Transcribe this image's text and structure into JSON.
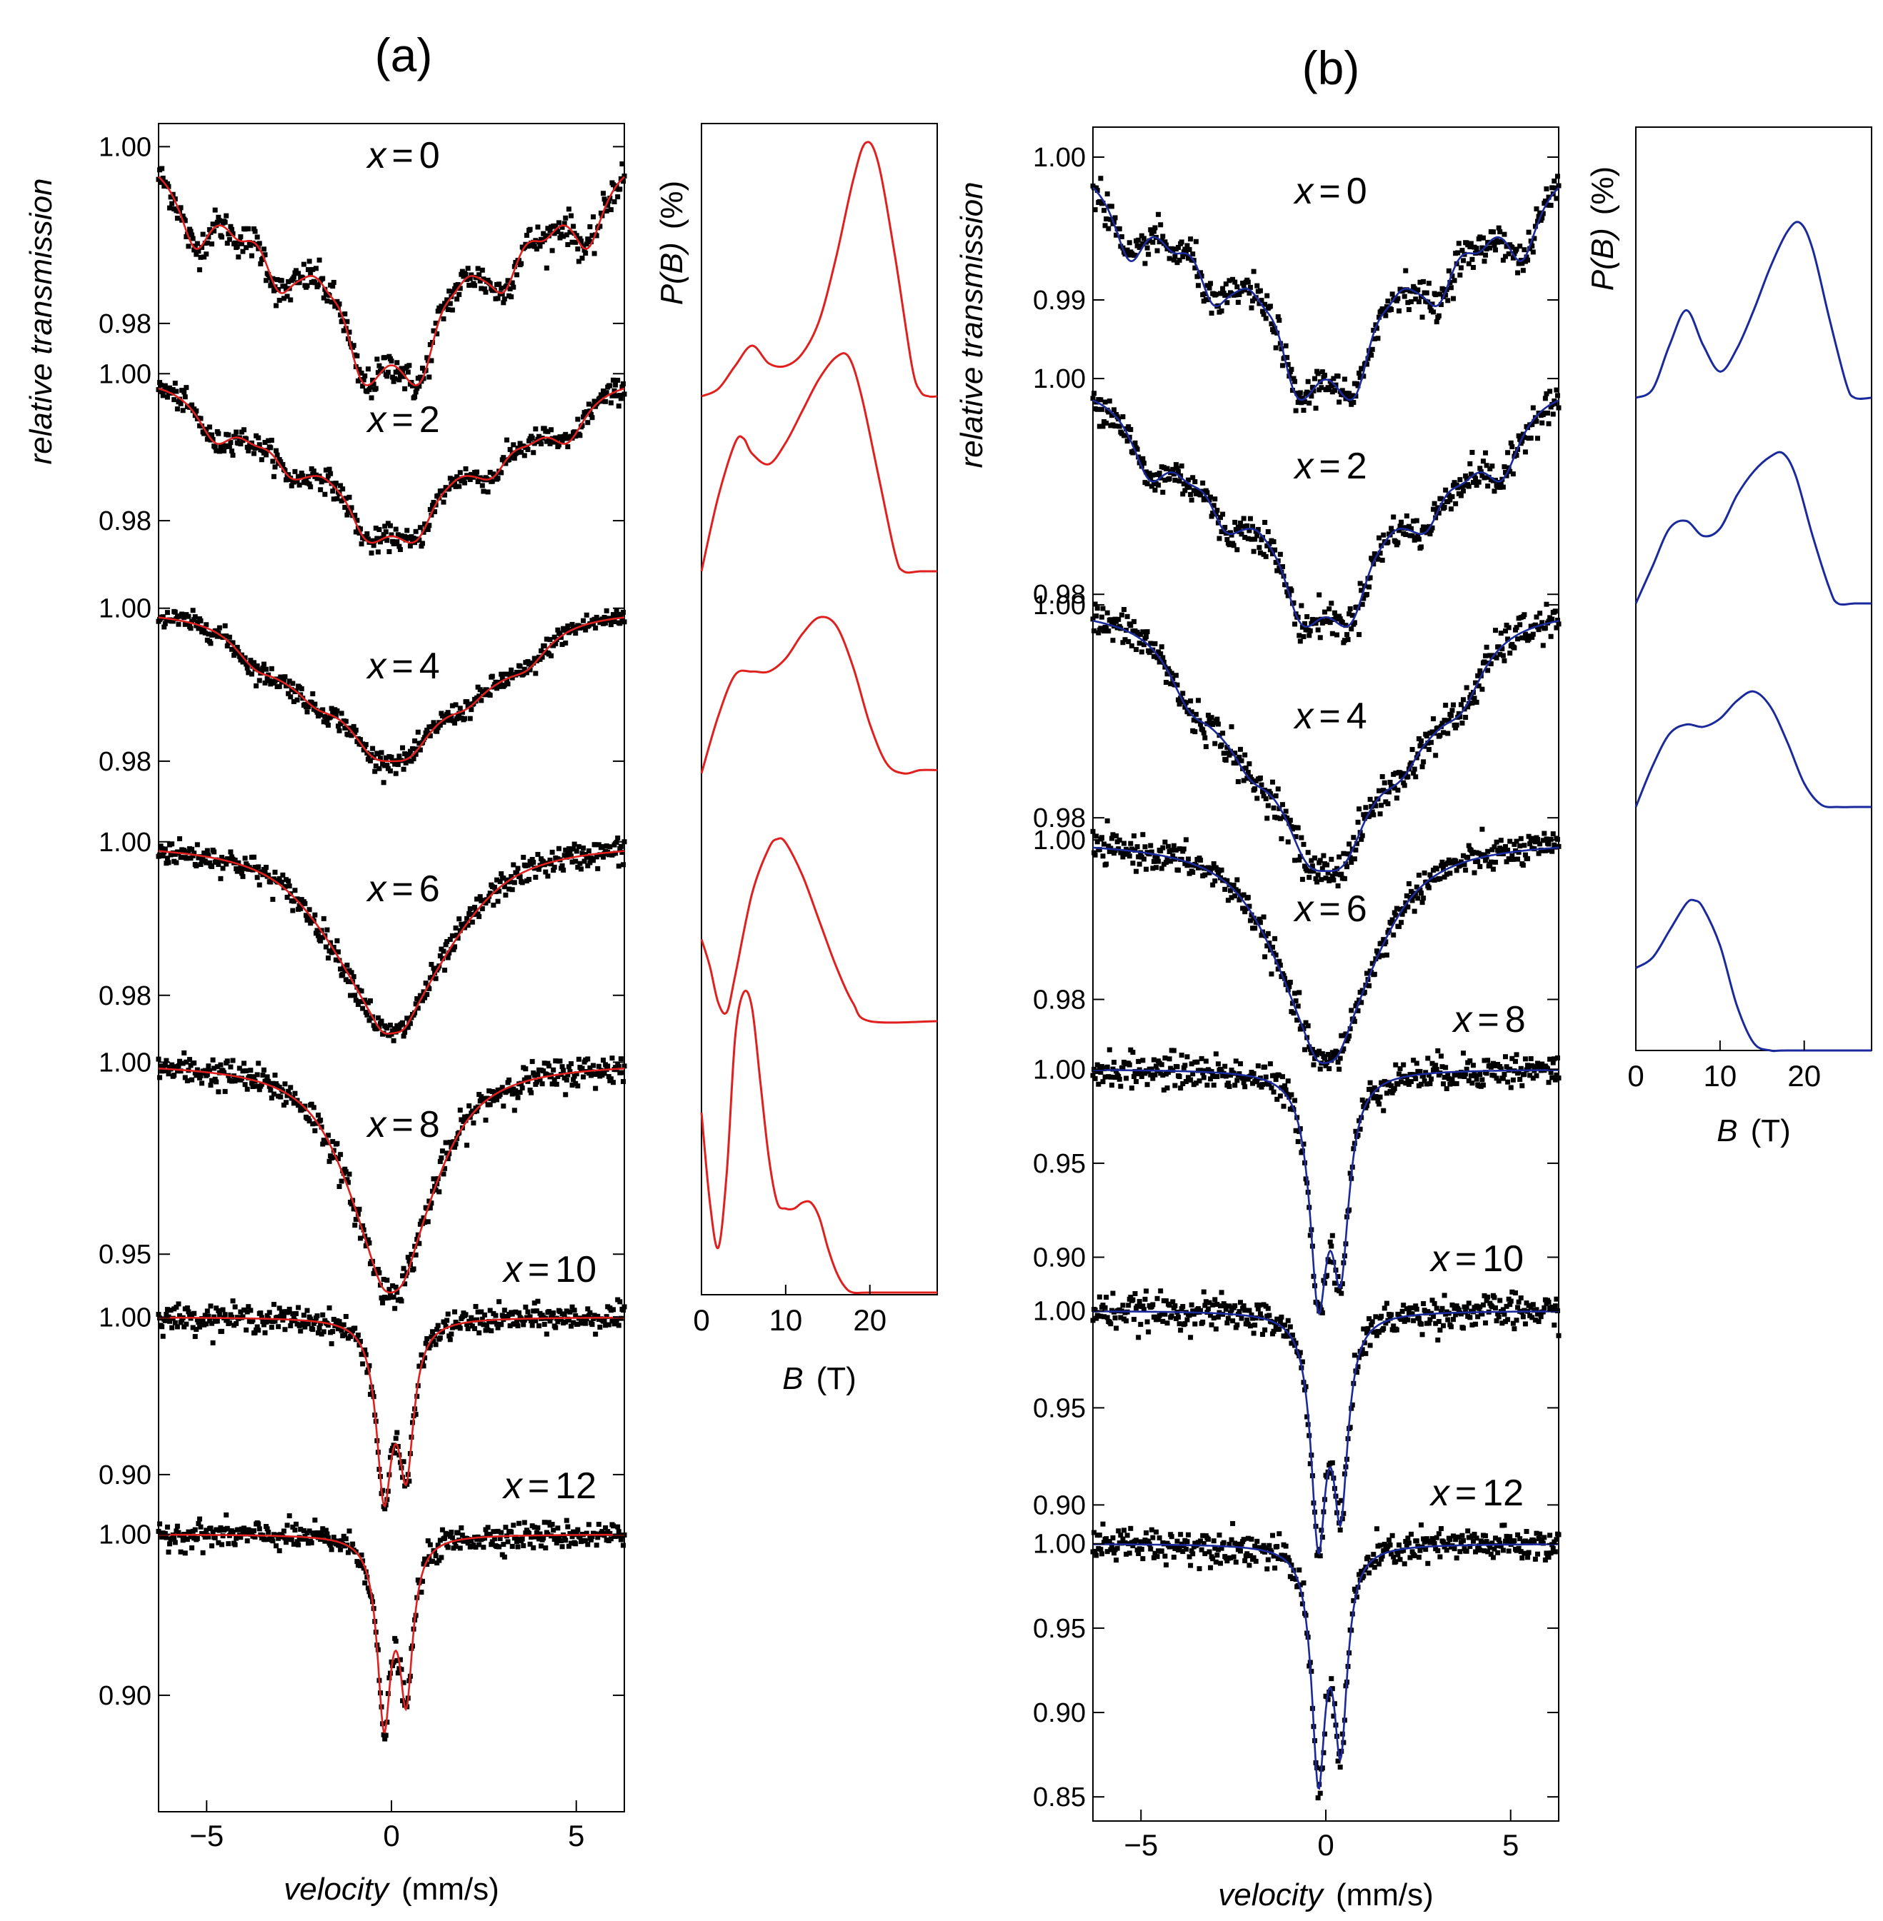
{
  "figure": {
    "panels": [
      "(a)",
      "(b)"
    ]
  },
  "chart_data": [
    {
      "id": "a-spectra",
      "type": "line",
      "panel": "(a)",
      "description_kind": "stacked transmission spectra with fit",
      "xlabel_italic": "velocity",
      "xlabel_unit": "(mm/s)",
      "ylabel": "relative transmission",
      "xlim": [
        -6.3,
        6.3
      ],
      "x_ticks": [
        "−5",
        "0",
        "5"
      ],
      "x_tick_values": [
        -5,
        0,
        5
      ],
      "fit_color": "#e0201e",
      "data_color": "#000000",
      "series": [
        {
          "label": "x = 0",
          "name": "x",
          "value": "0",
          "type": "six",
          "B": 19.5,
          "width": 0.55,
          "depth": 0.027,
          "y_ticks": [
            "1.00",
            "0.98"
          ],
          "y_tick_values": [
            1.0,
            0.98
          ],
          "ylim": [
            0.977,
            1.001
          ]
        },
        {
          "label": "x = 2",
          "name": "x",
          "value": "2",
          "type": "six",
          "B": 17.5,
          "width": 0.62,
          "depth": 0.023,
          "y_ticks": [
            "1.00",
            "0.98"
          ],
          "y_tick_values": [
            1.0,
            0.98
          ],
          "ylim": [
            0.977,
            1.001
          ]
        },
        {
          "label": "x = 4",
          "name": "x",
          "value": "4",
          "type": "six",
          "B": 13.5,
          "width": 0.75,
          "depth": 0.02,
          "y_ticks": [
            "1.00",
            "0.98"
          ],
          "y_tick_values": [
            1.0,
            0.98
          ],
          "ylim": [
            0.977,
            1.001
          ]
        },
        {
          "label": "x = 6",
          "name": "x",
          "value": "6",
          "type": "broad",
          "B": 8.0,
          "width": 1.2,
          "depth": 0.025,
          "y_ticks": [
            "1.00",
            "0.98"
          ],
          "y_tick_values": [
            1.0,
            0.98
          ],
          "ylim": [
            0.977,
            1.001
          ]
        },
        {
          "label": "x = 8",
          "name": "x",
          "value": "8",
          "type": "broad",
          "B": 5.0,
          "width": 0.95,
          "depth": 0.06,
          "y_ticks": [
            "1.00",
            "0.95"
          ],
          "y_tick_values": [
            1.0,
            0.95
          ],
          "ylim": [
            0.94,
            1.001
          ]
        },
        {
          "label": "x = 10",
          "name": "x",
          "value": "10",
          "type": "doublet",
          "B": 0,
          "width": 0.25,
          "depth": 0.12,
          "y_ticks": [
            "1.00",
            "0.90"
          ],
          "y_tick_values": [
            1.0,
            0.9
          ],
          "ylim": [
            0.875,
            1.002
          ]
        },
        {
          "label": "x = 12",
          "name": "x",
          "value": "12",
          "type": "doublet",
          "B": 0,
          "width": 0.22,
          "depth": 0.123,
          "y_ticks": [
            "1.00",
            "0.90"
          ],
          "y_tick_values": [
            1.0,
            0.9
          ],
          "ylim": [
            0.876,
            1.002
          ]
        }
      ]
    },
    {
      "id": "a-pb",
      "type": "line",
      "panel": "(a)",
      "description_kind": "field distributions",
      "ylabel_italic": "P(B)",
      "ylabel_unit": "(%)",
      "xlabel_italic": "B",
      "xlabel_unit": "(T)",
      "xlim": [
        0,
        28
      ],
      "x_ticks": [
        "0",
        "10",
        "20"
      ],
      "x_tick_values": [
        0,
        10,
        20
      ],
      "color": "#e0201e",
      "curves": [
        {
          "x": [
            0,
            2,
            4,
            6,
            8,
            10,
            12,
            14,
            16,
            18,
            19.5,
            21,
            23,
            25,
            26,
            27,
            28
          ],
          "y": [
            0,
            0.03,
            0.12,
            0.2,
            0.13,
            0.12,
            0.17,
            0.3,
            0.55,
            0.85,
            1.0,
            0.92,
            0.55,
            0.12,
            0.02,
            0,
            0
          ]
        },
        {
          "x": [
            0,
            2,
            4,
            5,
            6,
            8,
            10,
            12,
            14,
            16,
            17.5,
            19,
            21,
            23,
            24,
            26,
            28
          ],
          "y": [
            0,
            0.35,
            0.6,
            0.62,
            0.55,
            0.5,
            0.6,
            0.75,
            0.9,
            1.0,
            1.0,
            0.82,
            0.45,
            0.08,
            0,
            0,
            0
          ]
        },
        {
          "x": [
            0,
            2,
            4,
            6,
            8,
            10,
            12,
            14,
            16,
            18,
            20,
            22,
            24,
            26,
            28
          ],
          "y": [
            0,
            0.35,
            0.6,
            0.62,
            0.62,
            0.7,
            0.85,
            0.95,
            0.9,
            0.65,
            0.3,
            0.06,
            0.0,
            0.02,
            0.02
          ]
        },
        {
          "x": [
            0,
            1,
            2,
            3,
            4,
            6,
            8,
            9,
            10,
            12,
            14,
            16,
            18,
            20,
            28
          ],
          "y": [
            0.45,
            0.3,
            0.1,
            0.05,
            0.25,
            0.7,
            0.95,
            1.0,
            0.98,
            0.8,
            0.55,
            0.3,
            0.1,
            0,
            0
          ]
        },
        {
          "x": [
            0,
            1,
            2,
            3,
            4,
            5,
            6,
            7,
            8,
            9,
            10,
            11,
            12,
            13,
            14,
            15,
            16,
            17,
            18,
            20,
            28
          ],
          "y": [
            0.6,
            0.3,
            0.15,
            0.4,
            0.85,
            1.0,
            0.95,
            0.7,
            0.45,
            0.3,
            0.28,
            0.28,
            0.3,
            0.3,
            0.25,
            0.15,
            0.07,
            0.02,
            0.0,
            0.0,
            0.0
          ]
        }
      ]
    },
    {
      "id": "b-spectra",
      "type": "line",
      "panel": "(b)",
      "description_kind": "stacked transmission spectra with fit",
      "xlabel_italic": "velocity",
      "xlabel_unit": "(mm/s)",
      "ylabel": "relative transmission",
      "xlim": [
        -6.3,
        6.3
      ],
      "x_ticks": [
        "−5",
        "0",
        "5"
      ],
      "x_tick_values": [
        -5,
        0,
        5
      ],
      "fit_color": "#1a2a9c",
      "data_color": "#000000",
      "series": [
        {
          "label": "x = 0",
          "name": "x",
          "value": "0",
          "type": "six",
          "B": 19.5,
          "width": 0.55,
          "depth": 0.017,
          "y_ticks": [
            "1.00",
            "0.99"
          ],
          "y_tick_values": [
            1.0,
            0.99
          ],
          "ylim": [
            0.9845,
            1.001
          ]
        },
        {
          "label": "x = 2",
          "name": "x",
          "value": "2",
          "type": "six",
          "B": 17.5,
          "width": 0.62,
          "depth": 0.023,
          "y_ticks": [
            "1.00",
            "0.98"
          ],
          "y_tick_values": [
            1.0,
            0.98
          ],
          "ylim": [
            0.9775,
            1.001
          ]
        },
        {
          "label": "x = 4",
          "name": "x",
          "value": "4",
          "type": "six",
          "B": 13.5,
          "width": 0.75,
          "depth": 0.025,
          "y_ticks": [
            "1.00",
            "0.98"
          ],
          "y_tick_values": [
            1.0,
            0.98
          ],
          "ylim": [
            0.978,
            1.001
          ]
        },
        {
          "label": "x = 6",
          "name": "x",
          "value": "6",
          "type": "broad",
          "B": 6.0,
          "width": 1.05,
          "depth": 0.028,
          "y_ticks": [
            "1.00",
            "0.98"
          ],
          "y_tick_values": [
            1.0,
            0.98
          ],
          "ylim": [
            0.971,
            1.001
          ]
        },
        {
          "label": "x = 8",
          "name": "x",
          "value": "8",
          "type": "doublet",
          "B": 0,
          "width": 0.28,
          "depth": 0.13,
          "y_ticks": [
            "1.00",
            "0.95",
            "0.90"
          ],
          "y_tick_values": [
            1.0,
            0.95,
            0.9
          ],
          "ylim": [
            0.885,
            1.002
          ]
        },
        {
          "label": "x = 10",
          "name": "x",
          "value": "10",
          "type": "doublet",
          "B": 0,
          "width": 0.24,
          "depth": 0.125,
          "y_ticks": [
            "1.00",
            "0.95",
            "0.90"
          ],
          "y_tick_values": [
            1.0,
            0.95,
            0.9
          ],
          "ylim": [
            0.888,
            1.002
          ]
        },
        {
          "label": "x = 12",
          "name": "x",
          "value": "12",
          "type": "doublet",
          "B": 0,
          "width": 0.22,
          "depth": 0.145,
          "y_ticks": [
            "1.00",
            "0.95",
            "0.90",
            "0.85"
          ],
          "y_tick_values": [
            1.0,
            0.95,
            0.9,
            0.85
          ],
          "ylim": [
            0.845,
            1.002
          ]
        }
      ]
    },
    {
      "id": "b-pb",
      "type": "line",
      "panel": "(b)",
      "description_kind": "field distributions",
      "ylabel_italic": "P(B)",
      "ylabel_unit": "(%)",
      "xlabel_italic": "B",
      "xlabel_unit": "(T)",
      "xlim": [
        0,
        28
      ],
      "x_ticks": [
        "0",
        "10",
        "20"
      ],
      "x_tick_values": [
        0,
        10,
        20
      ],
      "color": "#1a2a9c",
      "curves": [
        {
          "x": [
            0,
            2,
            4,
            6,
            8,
            10,
            12,
            14,
            16,
            18,
            19.5,
            21,
            23,
            25,
            26,
            28
          ],
          "y": [
            0,
            0.05,
            0.3,
            0.5,
            0.3,
            0.15,
            0.28,
            0.5,
            0.75,
            0.95,
            1.0,
            0.85,
            0.45,
            0.08,
            0.0,
            0.0
          ]
        },
        {
          "x": [
            0,
            2,
            4,
            6,
            8,
            10,
            12,
            14,
            16,
            17.5,
            19,
            21,
            23,
            24,
            26,
            28
          ],
          "y": [
            0,
            0.25,
            0.5,
            0.55,
            0.45,
            0.5,
            0.72,
            0.88,
            0.98,
            1.0,
            0.85,
            0.45,
            0.1,
            0.0,
            0.0,
            0.0
          ]
        },
        {
          "x": [
            0,
            2,
            4,
            6,
            8,
            10,
            12,
            14,
            16,
            18,
            20,
            22,
            24,
            26,
            28
          ],
          "y": [
            0,
            0.35,
            0.62,
            0.7,
            0.68,
            0.75,
            0.9,
            0.98,
            0.85,
            0.55,
            0.2,
            0.02,
            0.0,
            0.0,
            0.0
          ]
        },
        {
          "x": [
            0,
            2,
            4,
            6,
            7,
            8,
            10,
            12,
            14,
            16,
            18,
            28
          ],
          "y": [
            0.55,
            0.62,
            0.8,
            0.98,
            1.0,
            0.95,
            0.7,
            0.3,
            0.05,
            0.0,
            0.0,
            0.0
          ]
        }
      ]
    }
  ]
}
